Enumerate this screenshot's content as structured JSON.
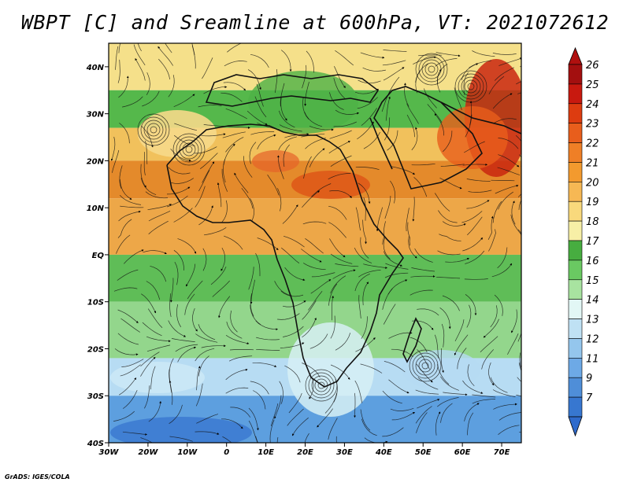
{
  "title": "WBPT [C] and Sreamline at 600hPa, VT: 2021072612",
  "credit": "GrADS: IGES/COLA",
  "map": {
    "lon_range": [
      -30,
      75
    ],
    "lat_range": [
      -40,
      45
    ],
    "lat_labels": [
      {
        "value": 40,
        "text": "40N"
      },
      {
        "value": 30,
        "text": "30N"
      },
      {
        "value": 20,
        "text": "20N"
      },
      {
        "value": 10,
        "text": "10N"
      },
      {
        "value": 0,
        "text": "EQ"
      },
      {
        "value": -10,
        "text": "10S"
      },
      {
        "value": -20,
        "text": "20S"
      },
      {
        "value": -30,
        "text": "30S"
      },
      {
        "value": -40,
        "text": "40S"
      }
    ],
    "lon_labels": [
      {
        "value": -30,
        "text": "30W"
      },
      {
        "value": -20,
        "text": "20W"
      },
      {
        "value": -10,
        "text": "10W"
      },
      {
        "value": 0,
        "text": "0"
      },
      {
        "value": 10,
        "text": "10E"
      },
      {
        "value": 20,
        "text": "20E"
      },
      {
        "value": 30,
        "text": "30E"
      },
      {
        "value": 40,
        "text": "40E"
      },
      {
        "value": 50,
        "text": "50E"
      },
      {
        "value": 60,
        "text": "60E"
      },
      {
        "value": 70,
        "text": "70E"
      }
    ],
    "temperature_bands": [
      {
        "lat_from": 45,
        "lat_to": 35,
        "wbpt_c": 19,
        "color": "#f5e08a"
      },
      {
        "lat_from": 35,
        "lat_to": 27,
        "wbpt_c": 18,
        "color": "#55b84b"
      },
      {
        "lat_from": 27,
        "lat_to": 20,
        "wbpt_c": 20,
        "color": "#f1c15c"
      },
      {
        "lat_from": 20,
        "lat_to": 12,
        "wbpt_c": 22,
        "color": "#e48a2b"
      },
      {
        "lat_from": 12,
        "lat_to": 0,
        "wbpt_c": 21,
        "color": "#eda748"
      },
      {
        "lat_from": 0,
        "lat_to": -10,
        "wbpt_c": 17,
        "color": "#5fbd57"
      },
      {
        "lat_from": -10,
        "lat_to": -22,
        "wbpt_c": 16,
        "color": "#93d68c"
      },
      {
        "lat_from": -22,
        "lat_to": -30,
        "wbpt_c": 14,
        "color": "#b7dcf3"
      },
      {
        "lat_from": -30,
        "lat_to": -40,
        "wbpt_c": 12,
        "color": "#5d9fdf"
      }
    ]
  },
  "colorbar": {
    "levels": [
      {
        "label": "26",
        "color": "#a30f0f"
      },
      {
        "label": "25",
        "color": "#c8190f"
      },
      {
        "label": "24",
        "color": "#dd3c10"
      },
      {
        "label": "23",
        "color": "#e85e1c"
      },
      {
        "label": "22",
        "color": "#ef7f26"
      },
      {
        "label": "21",
        "color": "#f39a2e"
      },
      {
        "label": "20",
        "color": "#f6b854"
      },
      {
        "label": "19",
        "color": "#f9d97c"
      },
      {
        "label": "18",
        "color": "#f7efa6"
      },
      {
        "label": "17",
        "color": "#47ad40"
      },
      {
        "label": "16",
        "color": "#6ac962"
      },
      {
        "label": "15",
        "color": "#a8e3a0"
      },
      {
        "label": "14",
        "color": "#e2f7f5"
      },
      {
        "label": "13",
        "color": "#bfe1f4"
      },
      {
        "label": "12",
        "color": "#94c6ed"
      },
      {
        "label": "11",
        "color": "#6da9e6"
      },
      {
        "label": "9",
        "color": "#4f8ed8"
      },
      {
        "label": "7",
        "color": "#3777d0"
      }
    ],
    "top_arrow_color": "#b0100f",
    "bottom_arrow_color": "#2f6bcc"
  }
}
